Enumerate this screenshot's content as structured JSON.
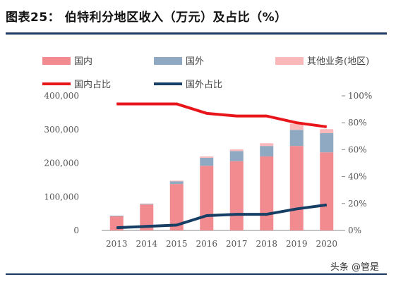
{
  "title": "图表25：  伯特利分地区收入（万元）及占比（%）",
  "watermark": "头条 @管是",
  "colors": {
    "domestic": "#f28b8f",
    "overseas": "#8ea9c1",
    "other": "#f9b8ba",
    "domestic_ratio": "#e8161b",
    "overseas_ratio": "#173f66"
  },
  "chart_data": {
    "type": "bar",
    "stacked": true,
    "categories": [
      "2013",
      "2014",
      "2015",
      "2016",
      "2017",
      "2018",
      "2019",
      "2020"
    ],
    "series": [
      {
        "name": "国内",
        "axis": "left",
        "values": [
          42000,
          77000,
          138000,
          192000,
          206000,
          220000,
          251000,
          232000
        ]
      },
      {
        "name": "国外",
        "axis": "left",
        "values": [
          2000,
          2000,
          8000,
          24000,
          30000,
          31000,
          48000,
          57000
        ]
      },
      {
        "name": "其他业务(地区)",
        "axis": "left",
        "values": [
          0,
          1000,
          2000,
          4000,
          5000,
          8000,
          18000,
          12000
        ]
      }
    ],
    "line_series": [
      {
        "name": "国内占比",
        "axis": "right",
        "values": [
          94,
          94,
          94,
          87,
          85,
          85,
          80,
          77
        ]
      },
      {
        "name": "国外占比",
        "axis": "right",
        "values": [
          2,
          3,
          4,
          11,
          12,
          12,
          16,
          19
        ]
      }
    ],
    "ylim": [
      0,
      400000
    ],
    "y2lim": [
      0,
      100
    ],
    "yticks": [
      "0",
      "100,000",
      "200,000",
      "300,000",
      "400,000"
    ],
    "y2ticks": [
      "0%",
      "20%",
      "40%",
      "60%",
      "80%",
      "100%"
    ],
    "legend_position": "top",
    "grid": false
  }
}
